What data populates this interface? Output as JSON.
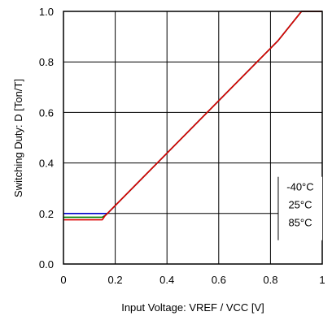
{
  "chart_data": {
    "type": "line",
    "xlabel": "Input Voltage: VREF / VCC [V]",
    "ylabel": "Switching Duty: D [Ton/T]",
    "xlim": [
      0,
      1
    ],
    "ylim": [
      0,
      1
    ],
    "x_ticks": [
      "0",
      "0.2",
      "0.4",
      "0.6",
      "0.8",
      "1"
    ],
    "y_ticks": [
      "0.0",
      "0.2",
      "0.4",
      "0.6",
      "0.8",
      "1.0"
    ],
    "grid": true,
    "legend_position": "lower-right",
    "legend_entries": [
      "-40°C",
      "25°C",
      "85°C"
    ],
    "series": [
      {
        "label": "-40°C",
        "color": "#0000cc",
        "x": [
          0,
          0.15,
          0.17,
          0.83,
          0.92,
          1.0
        ],
        "y": [
          0.2,
          0.2,
          0.2,
          0.885,
          1.0,
          1.0
        ]
      },
      {
        "label": "25°C",
        "color": "#008000",
        "x": [
          0,
          0.15,
          0.165,
          0.83,
          0.92,
          1.0
        ],
        "y": [
          0.185,
          0.185,
          0.195,
          0.885,
          1.0,
          1.0
        ]
      },
      {
        "label": "85°C",
        "color": "#dd0000",
        "x": [
          0,
          0.15,
          0.16,
          0.83,
          0.92,
          1.0
        ],
        "y": [
          0.175,
          0.175,
          0.19,
          0.885,
          1.0,
          1.0
        ]
      }
    ]
  }
}
